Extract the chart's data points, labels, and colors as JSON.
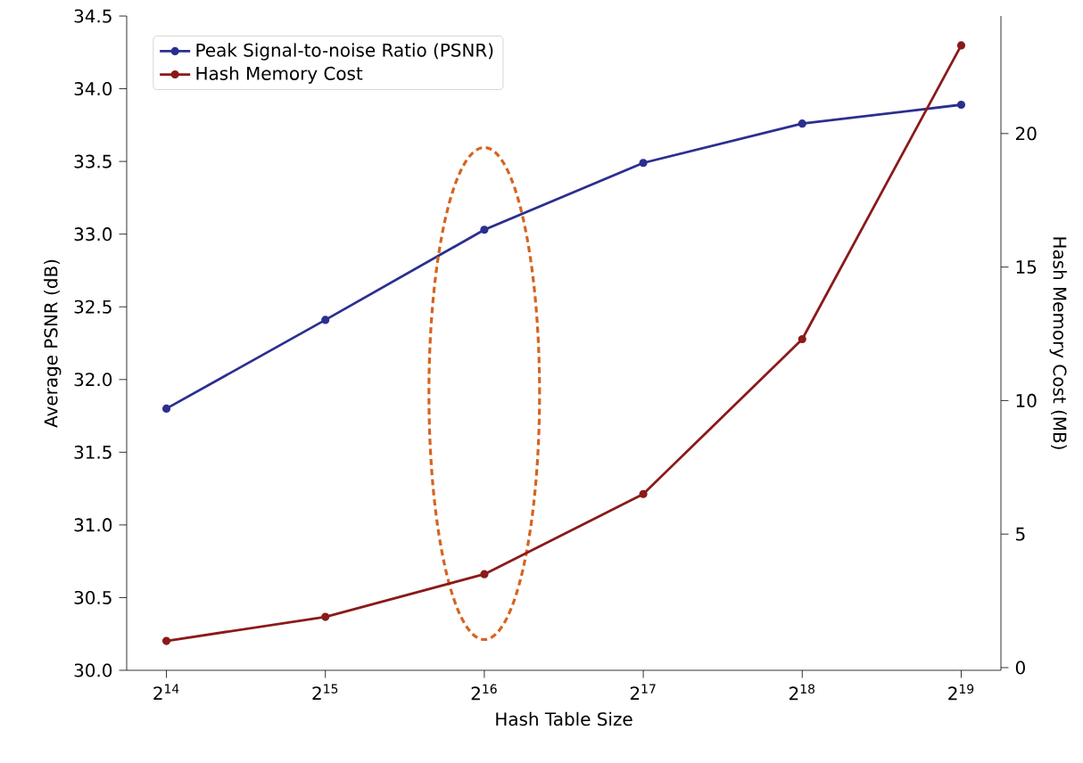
{
  "chart_data": {
    "type": "line",
    "xlabel": "Hash Table Size",
    "ylabel": "Average PSNR (dB)",
    "y2label": "Hash Memory Cost (MB)",
    "categories": [
      "2$^{14}$",
      "2$^{15}$",
      "2$^{16}$",
      "2$^{17}$",
      "2$^{18}$",
      "2$^{19}$"
    ],
    "series": [
      {
        "name": "Peak Signal-to-noise Ratio (PSNR)",
        "color": "#2b2f8f",
        "values": [
          31.8,
          32.41,
          33.03,
          33.49,
          33.76,
          33.89
        ]
      },
      {
        "name": "Hash Memory Cost",
        "color": "#8b1a1a",
        "axis": "y2",
        "values": [
          1.0,
          1.9,
          3.5,
          6.5,
          12.3,
          23.3
        ]
      }
    ],
    "ylim": [
      30.0,
      34.5
    ],
    "yticks": [
      {
        "value": 30.0,
        "label": "30.0"
      },
      {
        "value": 30.5,
        "label": "30.5"
      },
      {
        "value": 31.0,
        "label": "31.0"
      },
      {
        "value": 31.5,
        "label": "31.5"
      },
      {
        "value": 32.0,
        "label": "32.0"
      },
      {
        "value": 32.5,
        "label": "32.5"
      },
      {
        "value": 33.0,
        "label": "33.0"
      },
      {
        "value": 33.5,
        "label": "33.5"
      },
      {
        "value": 34.0,
        "label": "34.0"
      },
      {
        "value": 34.5,
        "label": "34.5"
      }
    ],
    "y2lim": [
      -0.1,
      24.4
    ],
    "y2ticks": [
      0,
      5,
      10,
      15,
      20
    ],
    "marker": "circle",
    "line_style": "solid",
    "grid": false,
    "legend": "top left"
  }
}
